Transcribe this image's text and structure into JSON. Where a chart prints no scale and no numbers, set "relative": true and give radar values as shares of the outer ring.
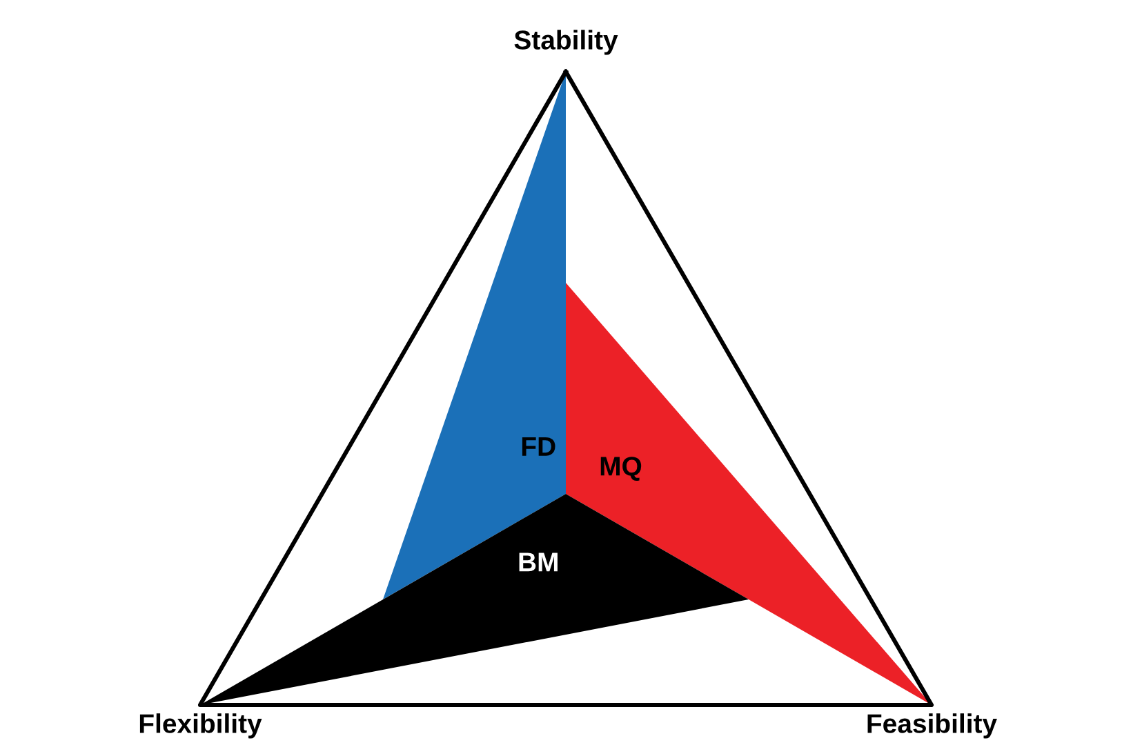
{
  "chart_data": {
    "type": "radar",
    "relative": true,
    "categories": [
      "Stability",
      "Feasibility",
      "Flexibility"
    ],
    "series": [
      {
        "name": "FD",
        "color": "#1b70b8",
        "values": [
          1,
          0,
          0.5
        ]
      },
      {
        "name": "MQ",
        "color": "#ec2127",
        "values": [
          0.5,
          1,
          0
        ]
      },
      {
        "name": "BM",
        "color": "#000000",
        "values": [
          0,
          0.5,
          1
        ]
      }
    ]
  }
}
